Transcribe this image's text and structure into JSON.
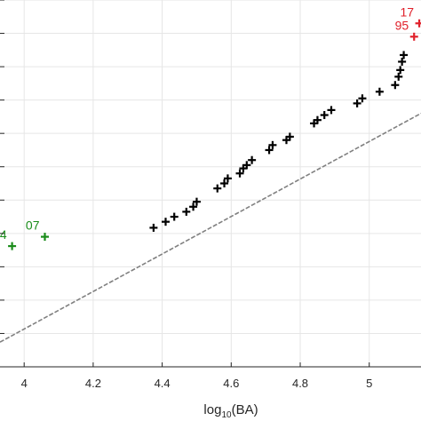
{
  "chart_data": {
    "type": "scatter",
    "title": "",
    "xlabel": {
      "base": "log",
      "sub": "10",
      "rest": "(BA)"
    },
    "ylabel": "",
    "xlim": [
      3.93,
      5.15
    ],
    "ylim": [
      0,
      11
    ],
    "xticks": [
      4,
      4.2,
      4.4,
      4.6,
      4.8,
      5
    ],
    "xtick_labels": [
      "4",
      "4.2",
      "4.4",
      "4.6",
      "4.8",
      "5"
    ],
    "yticks": [
      0,
      1,
      2,
      3,
      4,
      5,
      6,
      7,
      8,
      9,
      10,
      11
    ],
    "grid": true,
    "colors": {
      "black": "#000000",
      "green": "#1a8c1a",
      "red": "#e0202a",
      "fit": "#808080"
    },
    "fit_line": {
      "x": [
        3.93,
        5.15
      ],
      "y": [
        0.74,
        7.6
      ]
    },
    "series": [
      {
        "color": "black",
        "points": [
          [
            4.375,
            4.17
          ],
          [
            4.41,
            4.35
          ],
          [
            4.435,
            4.5
          ],
          [
            4.47,
            4.65
          ],
          [
            4.49,
            4.8
          ],
          [
            4.5,
            4.95
          ],
          [
            4.56,
            5.35
          ],
          [
            4.58,
            5.5
          ],
          [
            4.59,
            5.65
          ],
          [
            4.625,
            5.8
          ],
          [
            4.635,
            5.95
          ],
          [
            4.645,
            6.05
          ],
          [
            4.66,
            6.2
          ],
          [
            4.71,
            6.5
          ],
          [
            4.72,
            6.65
          ],
          [
            4.76,
            6.8
          ],
          [
            4.77,
            6.9
          ],
          [
            4.84,
            7.3
          ],
          [
            4.85,
            7.4
          ],
          [
            4.87,
            7.55
          ],
          [
            4.89,
            7.7
          ],
          [
            4.965,
            7.9
          ],
          [
            4.98,
            8.05
          ],
          [
            5.03,
            8.25
          ],
          [
            5.075,
            8.45
          ],
          [
            5.085,
            8.7
          ],
          [
            5.09,
            8.9
          ],
          [
            5.095,
            9.15
          ],
          [
            5.1,
            9.35
          ]
        ]
      },
      {
        "color": "green",
        "points": [
          [
            3.965,
            3.62
          ],
          [
            4.06,
            3.9
          ]
        ],
        "labels": [
          "4",
          "07"
        ]
      },
      {
        "color": "red",
        "points": [
          [
            5.13,
            9.9
          ],
          [
            5.145,
            10.3
          ]
        ],
        "labels": [
          "95",
          "17"
        ]
      }
    ]
  }
}
